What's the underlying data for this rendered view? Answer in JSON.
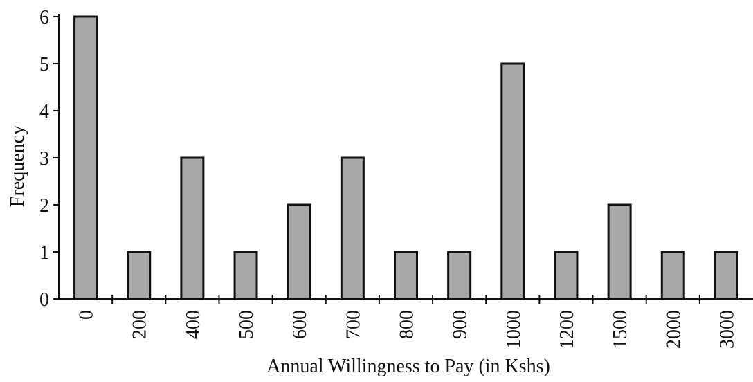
{
  "chart_data": {
    "type": "bar",
    "x_label": "Annual Willingness to Pay (in Kshs)",
    "y_label": "Frequency",
    "categories": [
      "0",
      "200",
      "400",
      "500",
      "600",
      "700",
      "800",
      "900",
      "1000",
      "1200",
      "1500",
      "2000",
      "3000"
    ],
    "values": [
      6,
      1,
      3,
      1,
      2,
      3,
      1,
      1,
      5,
      1,
      2,
      1,
      1
    ],
    "color": "#a8a8a8",
    "ylim": [
      0,
      6
    ],
    "yticks": [
      0,
      1,
      2,
      3,
      4,
      5,
      6
    ]
  }
}
